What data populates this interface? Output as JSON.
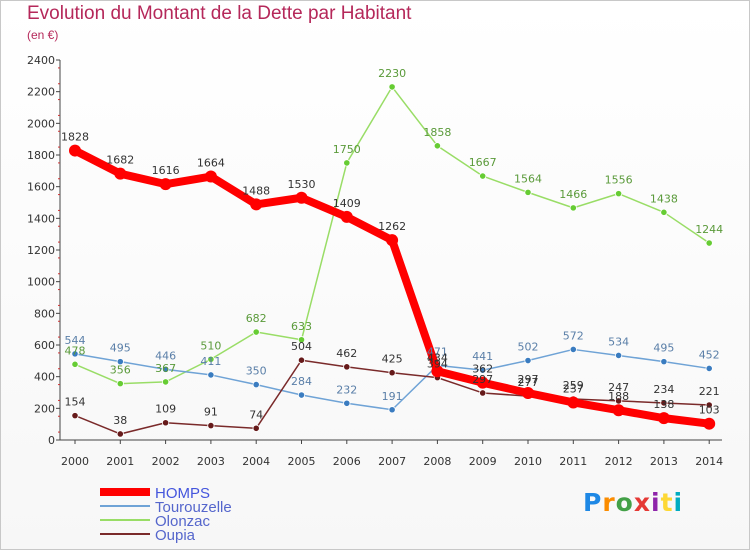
{
  "header": {
    "title": "Evolution du Montant de la Dette par Habitant",
    "subtitle": "(en €)"
  },
  "logo": {
    "text": "Proxiti",
    "colors": [
      "#1e88e5",
      "#fb8c00",
      "#43a047",
      "#e53935",
      "#8e24aa",
      "#fdd835",
      "#00acc1"
    ]
  },
  "chart_data": {
    "type": "line",
    "title": "Evolution du Montant de la Dette par Habitant",
    "subtitle": "(en €)",
    "xlabel": "",
    "ylabel": "",
    "x": [
      "2000",
      "2001",
      "2002",
      "2003",
      "2004",
      "2005",
      "2006",
      "2007",
      "2008",
      "2009",
      "2010",
      "2011",
      "2012",
      "2013",
      "2014"
    ],
    "ylim": [
      0,
      2400
    ],
    "yticks": [
      0,
      200,
      400,
      600,
      800,
      1000,
      1200,
      1400,
      1600,
      1800,
      2000,
      2200,
      2400
    ],
    "grid": false,
    "legend_position": "bottom-left",
    "series": [
      {
        "name": "HOMPS",
        "color": "#ff0000",
        "point_color": "#ff0000",
        "label_color": "#333333",
        "values": [
          1828,
          1682,
          1616,
          1664,
          1488,
          1530,
          1409,
          1262,
          434,
          362,
          297,
          237,
          188,
          138,
          103
        ]
      },
      {
        "name": "Tourouzelle",
        "color": "#6fa3d6",
        "point_color": "#3a7cc0",
        "label_color": "#5a7fa8",
        "values": [
          544,
          495,
          446,
          411,
          350,
          284,
          232,
          191,
          471,
          441,
          502,
          572,
          534,
          495,
          452
        ]
      },
      {
        "name": "Olonzac",
        "color": "#99dd66",
        "point_color": "#66cc33",
        "label_color": "#5a9a3a",
        "values": [
          478,
          356,
          367,
          510,
          682,
          633,
          1750,
          2230,
          1858,
          1667,
          1564,
          1466,
          1556,
          1438,
          1244
        ]
      },
      {
        "name": "Oupia",
        "color": "#7a2a2a",
        "point_color": "#661a1a",
        "label_color": "#333333",
        "values": [
          154,
          38,
          109,
          91,
          74,
          504,
          462,
          425,
          394,
          297,
          277,
          259,
          247,
          234,
          221
        ]
      }
    ]
  }
}
